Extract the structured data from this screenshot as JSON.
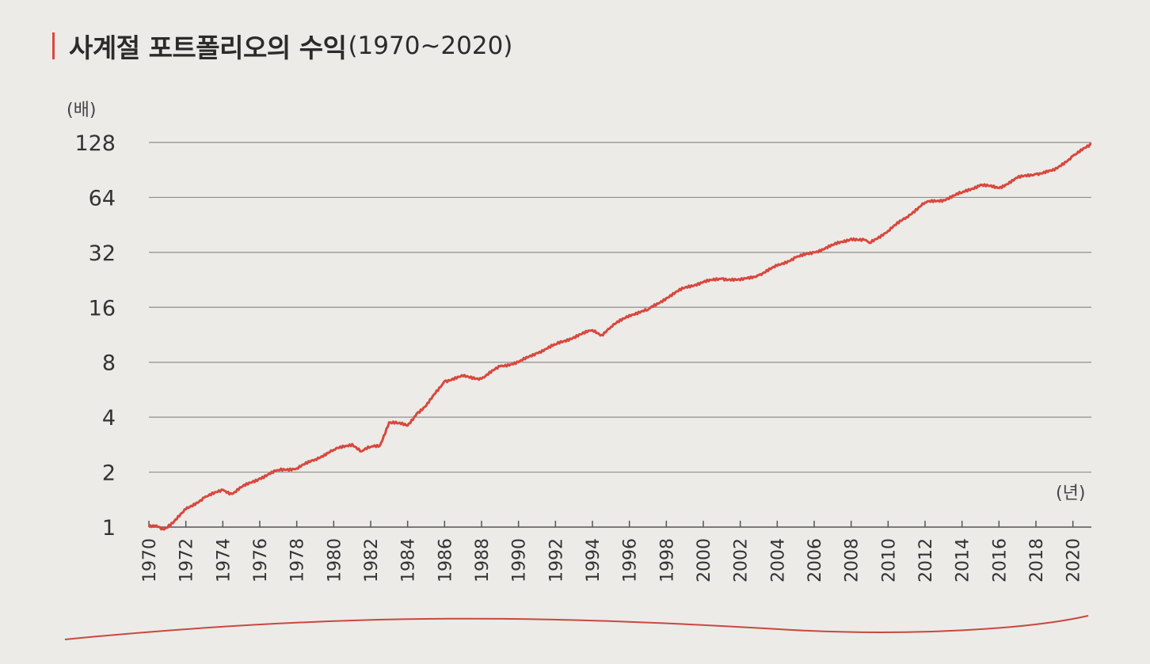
{
  "page": {
    "title_main": "사계절 포트폴리오의 수익",
    "title_sub": "(1970~2020)",
    "accent_color": "#d9473d"
  },
  "chart_data": {
    "type": "line",
    "title": "사계절 포트폴리오의 수익(1970~2020)",
    "xlabel": "(년)",
    "ylabel": "(배)",
    "y_scale": "log2",
    "ylim": [
      1,
      128
    ],
    "xlim": [
      1970,
      2021
    ],
    "yticks": [
      "1",
      "2",
      "4",
      "8",
      "16",
      "32",
      "64",
      "128"
    ],
    "xticks": [
      "1970",
      "1972",
      "1974",
      "1976",
      "1978",
      "1980",
      "1982",
      "1984",
      "1986",
      "1988",
      "1990",
      "1992",
      "1994",
      "1996",
      "1998",
      "2000",
      "2002",
      "2004",
      "2006",
      "2008",
      "2010",
      "2012",
      "2014",
      "2016",
      "2018",
      "2020"
    ],
    "grid": true,
    "line_color": "#d9473d",
    "series": [
      {
        "x": [
          1970,
          1970.4,
          1970.8,
          1971.3,
          1972,
          1973,
          1974,
          1974.5,
          1975,
          1976,
          1977,
          1978,
          1979,
          1980,
          1981,
          1981.5,
          1982,
          1982.5,
          1983,
          1983.5,
          1984,
          1984.5,
          1985,
          1985.5,
          1986,
          1987,
          1988,
          1989,
          1990,
          1991,
          1992,
          1993,
          1994,
          1994.5,
          1995,
          1996,
          1997,
          1998,
          1999,
          2000,
          2001,
          2002,
          2003,
          2004,
          2005,
          2006,
          2007,
          2008,
          2008.7,
          2009,
          2010,
          2011,
          2012,
          2013,
          2014,
          2015,
          2016,
          2017,
          2018,
          2019,
          2020,
          2021
        ],
        "y": [
          1.0,
          1.02,
          0.97,
          1.05,
          1.25,
          1.45,
          1.6,
          1.52,
          1.65,
          1.85,
          2.05,
          2.1,
          2.35,
          2.65,
          2.85,
          2.6,
          2.75,
          2.8,
          3.75,
          3.7,
          3.6,
          4.2,
          4.6,
          5.4,
          6.3,
          6.7,
          6.5,
          7.6,
          8.0,
          9.0,
          10.0,
          11.0,
          12.0,
          11.3,
          12.5,
          14.5,
          15.5,
          18.0,
          20.5,
          22.0,
          23.0,
          22.5,
          24.0,
          27.0,
          30.0,
          32.0,
          35.0,
          38.0,
          37.5,
          36.0,
          42.0,
          50.0,
          60.0,
          62.0,
          68.0,
          75.0,
          72.0,
          82.0,
          86.0,
          90.0,
          108.0,
          125.0
        ]
      }
    ]
  }
}
